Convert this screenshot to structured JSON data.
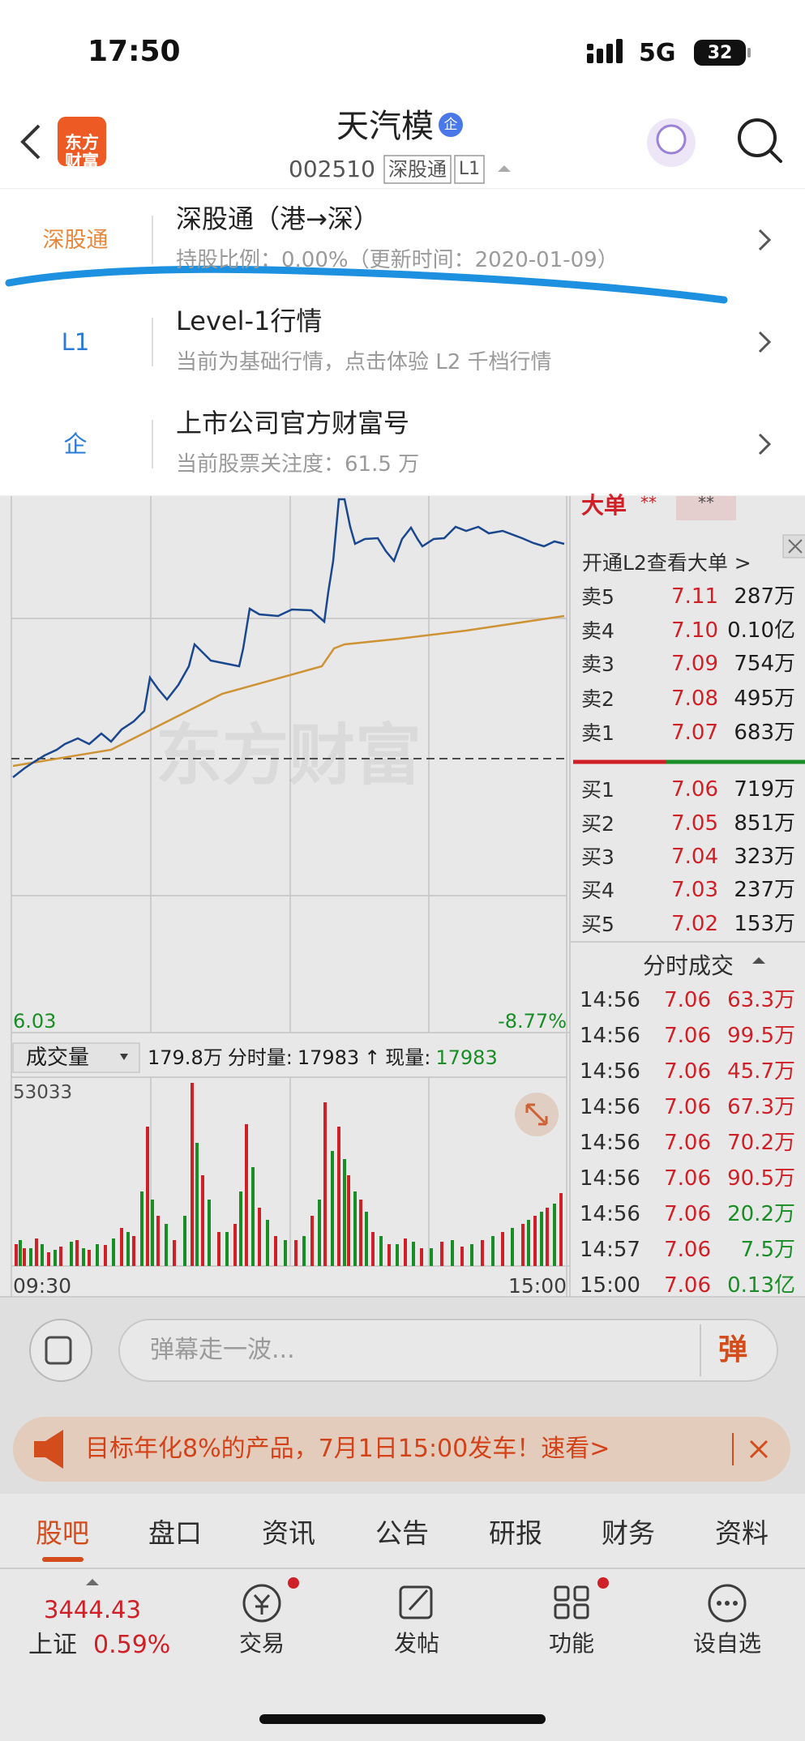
{
  "status_bar": {
    "time": "17:50",
    "network": "5G",
    "battery": "32"
  },
  "header": {
    "logo": "东方财富",
    "title": "天汽模",
    "title_badge": "企",
    "code": "002510",
    "tags": [
      "深股通",
      "L1"
    ]
  },
  "menu": [
    {
      "icon": "深股通",
      "title": "深股通（港→深）",
      "subtitle": "持股比例：0.00%（更新时间：2020-01-09）"
    },
    {
      "icon": "L1",
      "title": "Level-1行情",
      "subtitle": "当前为基础行情，点击体验 L2 千档行情"
    },
    {
      "icon": "企",
      "title": "上市公司官方财富号",
      "subtitle": "当前股票关注度：61.5 万"
    }
  ],
  "chart": {
    "price_low": "6.03",
    "change_low": "-8.77%",
    "big_order_title": "大单",
    "big_order_a": "**",
    "big_order_b": "**",
    "l2_prompt": "开通L2查看大单 >"
  },
  "order_book": {
    "sell": [
      {
        "label": "卖5",
        "price": "7.11",
        "volume": "287万"
      },
      {
        "label": "卖4",
        "price": "7.10",
        "volume": "0.10亿"
      },
      {
        "label": "卖3",
        "price": "7.09",
        "volume": "754万"
      },
      {
        "label": "卖2",
        "price": "7.08",
        "volume": "495万"
      },
      {
        "label": "卖1",
        "price": "7.07",
        "volume": "683万"
      }
    ],
    "buy": [
      {
        "label": "买1",
        "price": "7.06",
        "volume": "719万"
      },
      {
        "label": "买2",
        "price": "7.05",
        "volume": "851万"
      },
      {
        "label": "买3",
        "price": "7.04",
        "volume": "323万"
      },
      {
        "label": "买4",
        "price": "7.03",
        "volume": "237万"
      },
      {
        "label": "买5",
        "price": "7.02",
        "volume": "153万"
      }
    ]
  },
  "trades": {
    "title": "分时成交",
    "rows": [
      {
        "time": "14:56",
        "price": "7.06",
        "volume": "63.3万",
        "color": "#e5242b"
      },
      {
        "time": "14:56",
        "price": "7.06",
        "volume": "99.5万",
        "color": "#e5242b"
      },
      {
        "time": "14:56",
        "price": "7.06",
        "volume": "45.7万",
        "color": "#e5242b"
      },
      {
        "time": "14:56",
        "price": "7.06",
        "volume": "67.3万",
        "color": "#e5242b"
      },
      {
        "time": "14:56",
        "price": "7.06",
        "volume": "70.2万",
        "color": "#e5242b"
      },
      {
        "time": "14:56",
        "price": "7.06",
        "volume": "90.5万",
        "color": "#e5242b"
      },
      {
        "time": "14:56",
        "price": "7.06",
        "volume": "20.2万",
        "color": "#1c9c2a"
      },
      {
        "time": "14:57",
        "price": "7.06",
        "volume": "7.5万",
        "color": "#1c9c2a"
      },
      {
        "time": "15:00",
        "price": "7.06",
        "volume": "0.13亿",
        "color": "#1c9c2a"
      }
    ]
  },
  "volume": {
    "selector": "成交量",
    "total": "179.8万",
    "minute_label": "分时量:",
    "minute": "17983",
    "minute_arrow": "↑",
    "current_label": "现量:",
    "current": "17983",
    "max": "53033",
    "start": "09:30",
    "end": "15:00"
  },
  "danmaku": {
    "placeholder": "弹幕走一波...",
    "button": "弹"
  },
  "banner": {
    "text": "目标年化8%的产品，7月1日15:00发车！速看>"
  },
  "tabs": [
    "股吧",
    "盘口",
    "资讯",
    "公告",
    "研报",
    "财务",
    "资料"
  ],
  "bottom_nav": {
    "index_value": "3444.43",
    "index_name": "上证",
    "index_change": "0.59%",
    "items": [
      "交易",
      "发帖",
      "功能",
      "设自选"
    ]
  }
}
